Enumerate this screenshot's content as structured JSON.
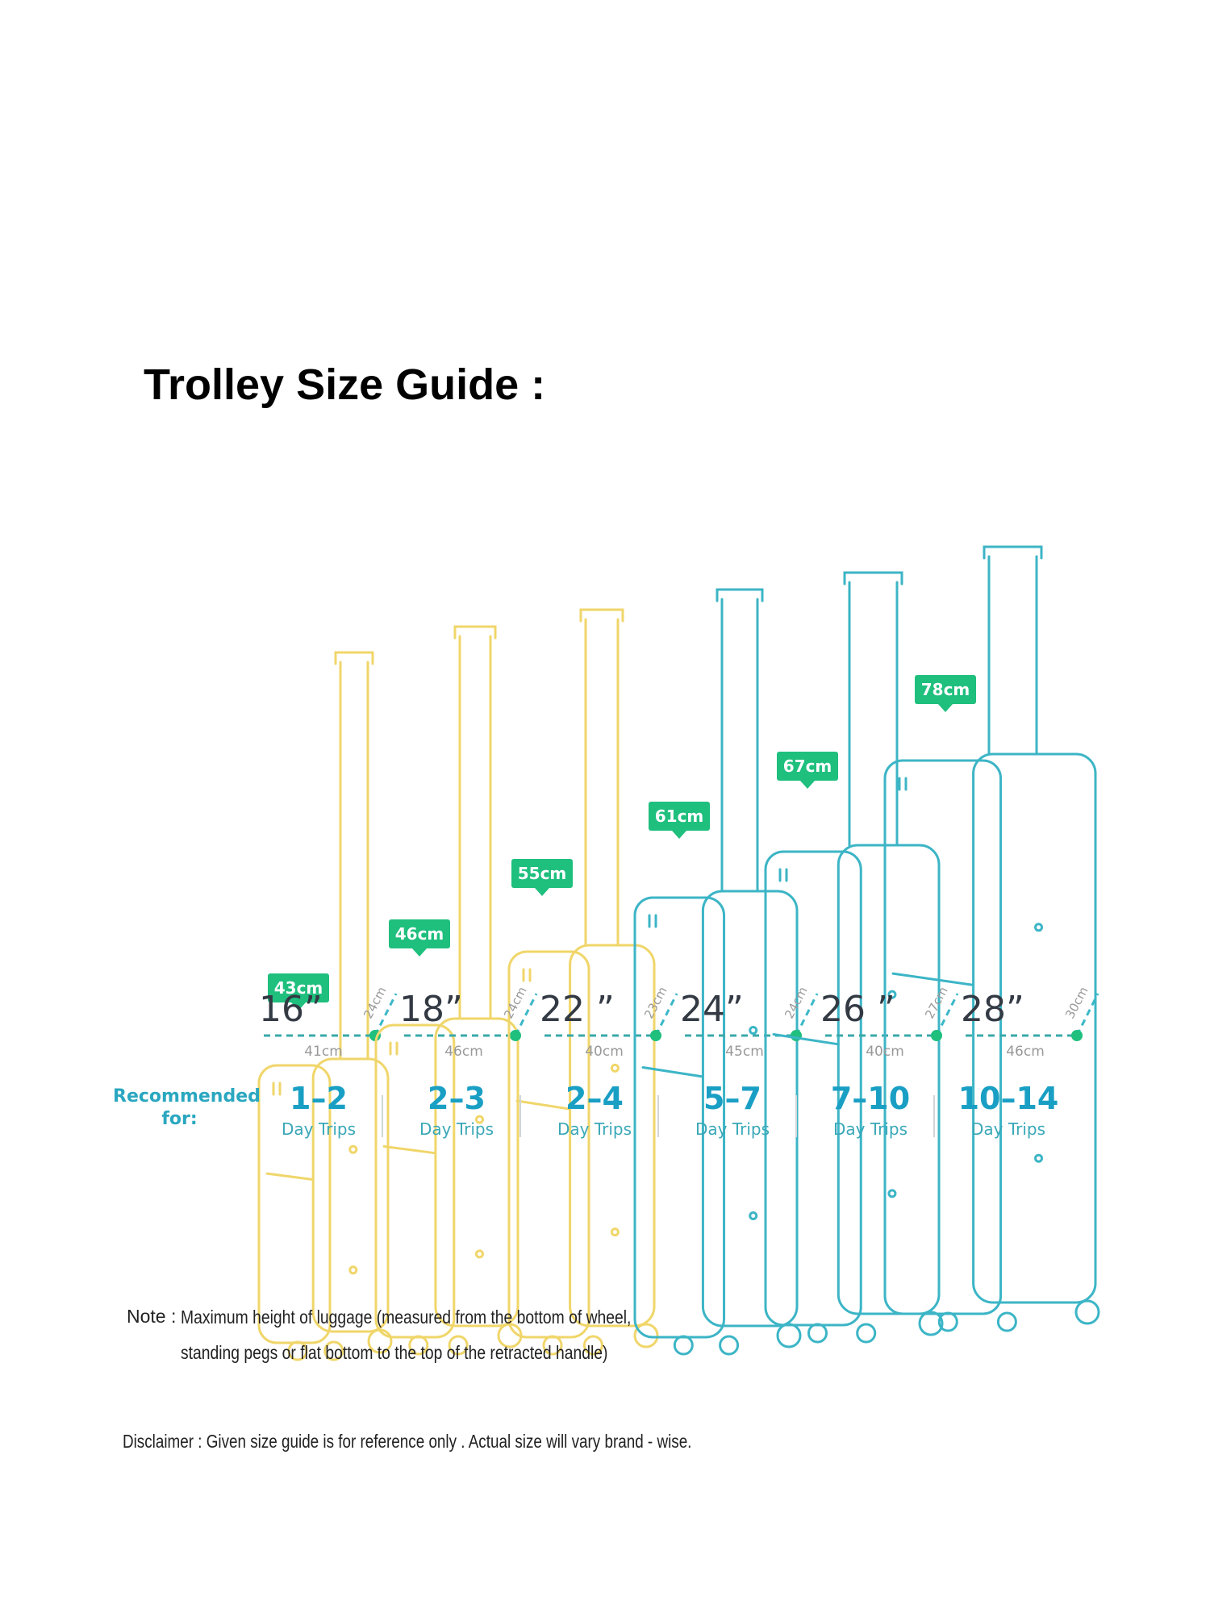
{
  "title": "Trolley Size Guide :",
  "colors": {
    "small": "#f0d66a",
    "large": "#3cb5c6",
    "tag": "#1fbf7e",
    "accent": "#1a9fc4"
  },
  "suitcases": [
    {
      "size": "16”",
      "height": "43cm",
      "width": "41cm",
      "depth": "24cm",
      "range": "1–2",
      "trips": "Day Trips",
      "color": "small"
    },
    {
      "size": "18”",
      "height": "46cm",
      "width": "46cm",
      "depth": "24cm",
      "range": "2–3",
      "trips": "Day Trips",
      "color": "small"
    },
    {
      "size": "22 ”",
      "height": "55cm",
      "width": "40cm",
      "depth": "23cm",
      "range": "2–4",
      "trips": "Day Trips",
      "color": "small"
    },
    {
      "size": "24”",
      "height": "61cm",
      "width": "45cm",
      "depth": "24cm",
      "range": "5–7",
      "trips": "Day Trips",
      "color": "large"
    },
    {
      "size": "26 ”",
      "height": "67cm",
      "width": "40cm",
      "depth": "27cm",
      "range": "7–10",
      "trips": "Day Trips",
      "color": "large"
    },
    {
      "size": "28”",
      "height": "78cm",
      "width": "46cm",
      "depth": "30cm",
      "range": "10–14",
      "trips": "Day Trips",
      "color": "large"
    }
  ],
  "recommended": {
    "line1": "Recommended",
    "line2": "for:"
  },
  "note": {
    "label": "Note :",
    "line1": "Maximum height of luggage (measured from the bottom of wheel,",
    "line2": "standing pegs or flat bottom to the top of the retracted handle)"
  },
  "disclaimer": "Disclaimer : Given size guide is for reference only . Actual size will vary brand - wise."
}
